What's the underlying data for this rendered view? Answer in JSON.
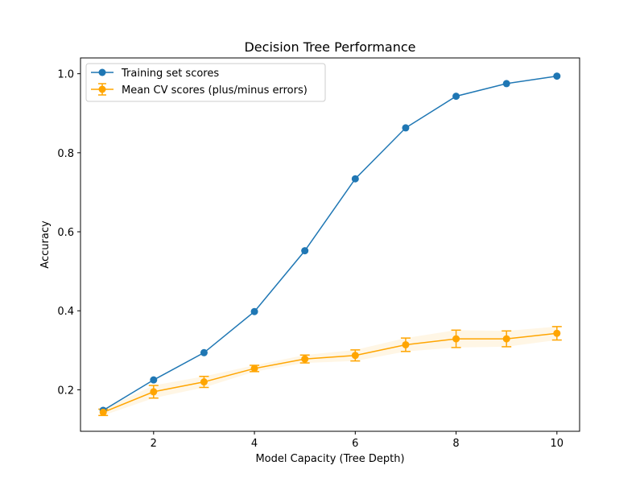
{
  "chart_data": {
    "type": "line",
    "title": "Decision Tree Performance",
    "xlabel": "Model Capacity (Tree Depth)",
    "ylabel": "Accuracy",
    "xlim": [
      0.55,
      10.45
    ],
    "ylim": [
      0.095,
      1.04
    ],
    "xticks": [
      2,
      4,
      6,
      8,
      10
    ],
    "yticks": [
      0.2,
      0.4,
      0.6,
      0.8,
      1.0
    ],
    "x": [
      1,
      2,
      3,
      4,
      5,
      6,
      7,
      8,
      9,
      10
    ],
    "series": [
      {
        "name": "Training set scores",
        "color": "#1f77b4",
        "values": [
          0.148,
          0.225,
          0.294,
          0.398,
          0.552,
          0.734,
          0.863,
          0.943,
          0.975,
          0.994
        ]
      },
      {
        "name": "Mean CV scores (plus/minus errors)",
        "color": "#ffa500",
        "values": [
          0.143,
          0.195,
          0.22,
          0.254,
          0.278,
          0.287,
          0.314,
          0.329,
          0.329,
          0.343
        ],
        "errors": [
          0.008,
          0.016,
          0.014,
          0.008,
          0.01,
          0.014,
          0.017,
          0.022,
          0.02,
          0.017
        ]
      }
    ],
    "legend_position": "upper-left",
    "grid": false
  }
}
